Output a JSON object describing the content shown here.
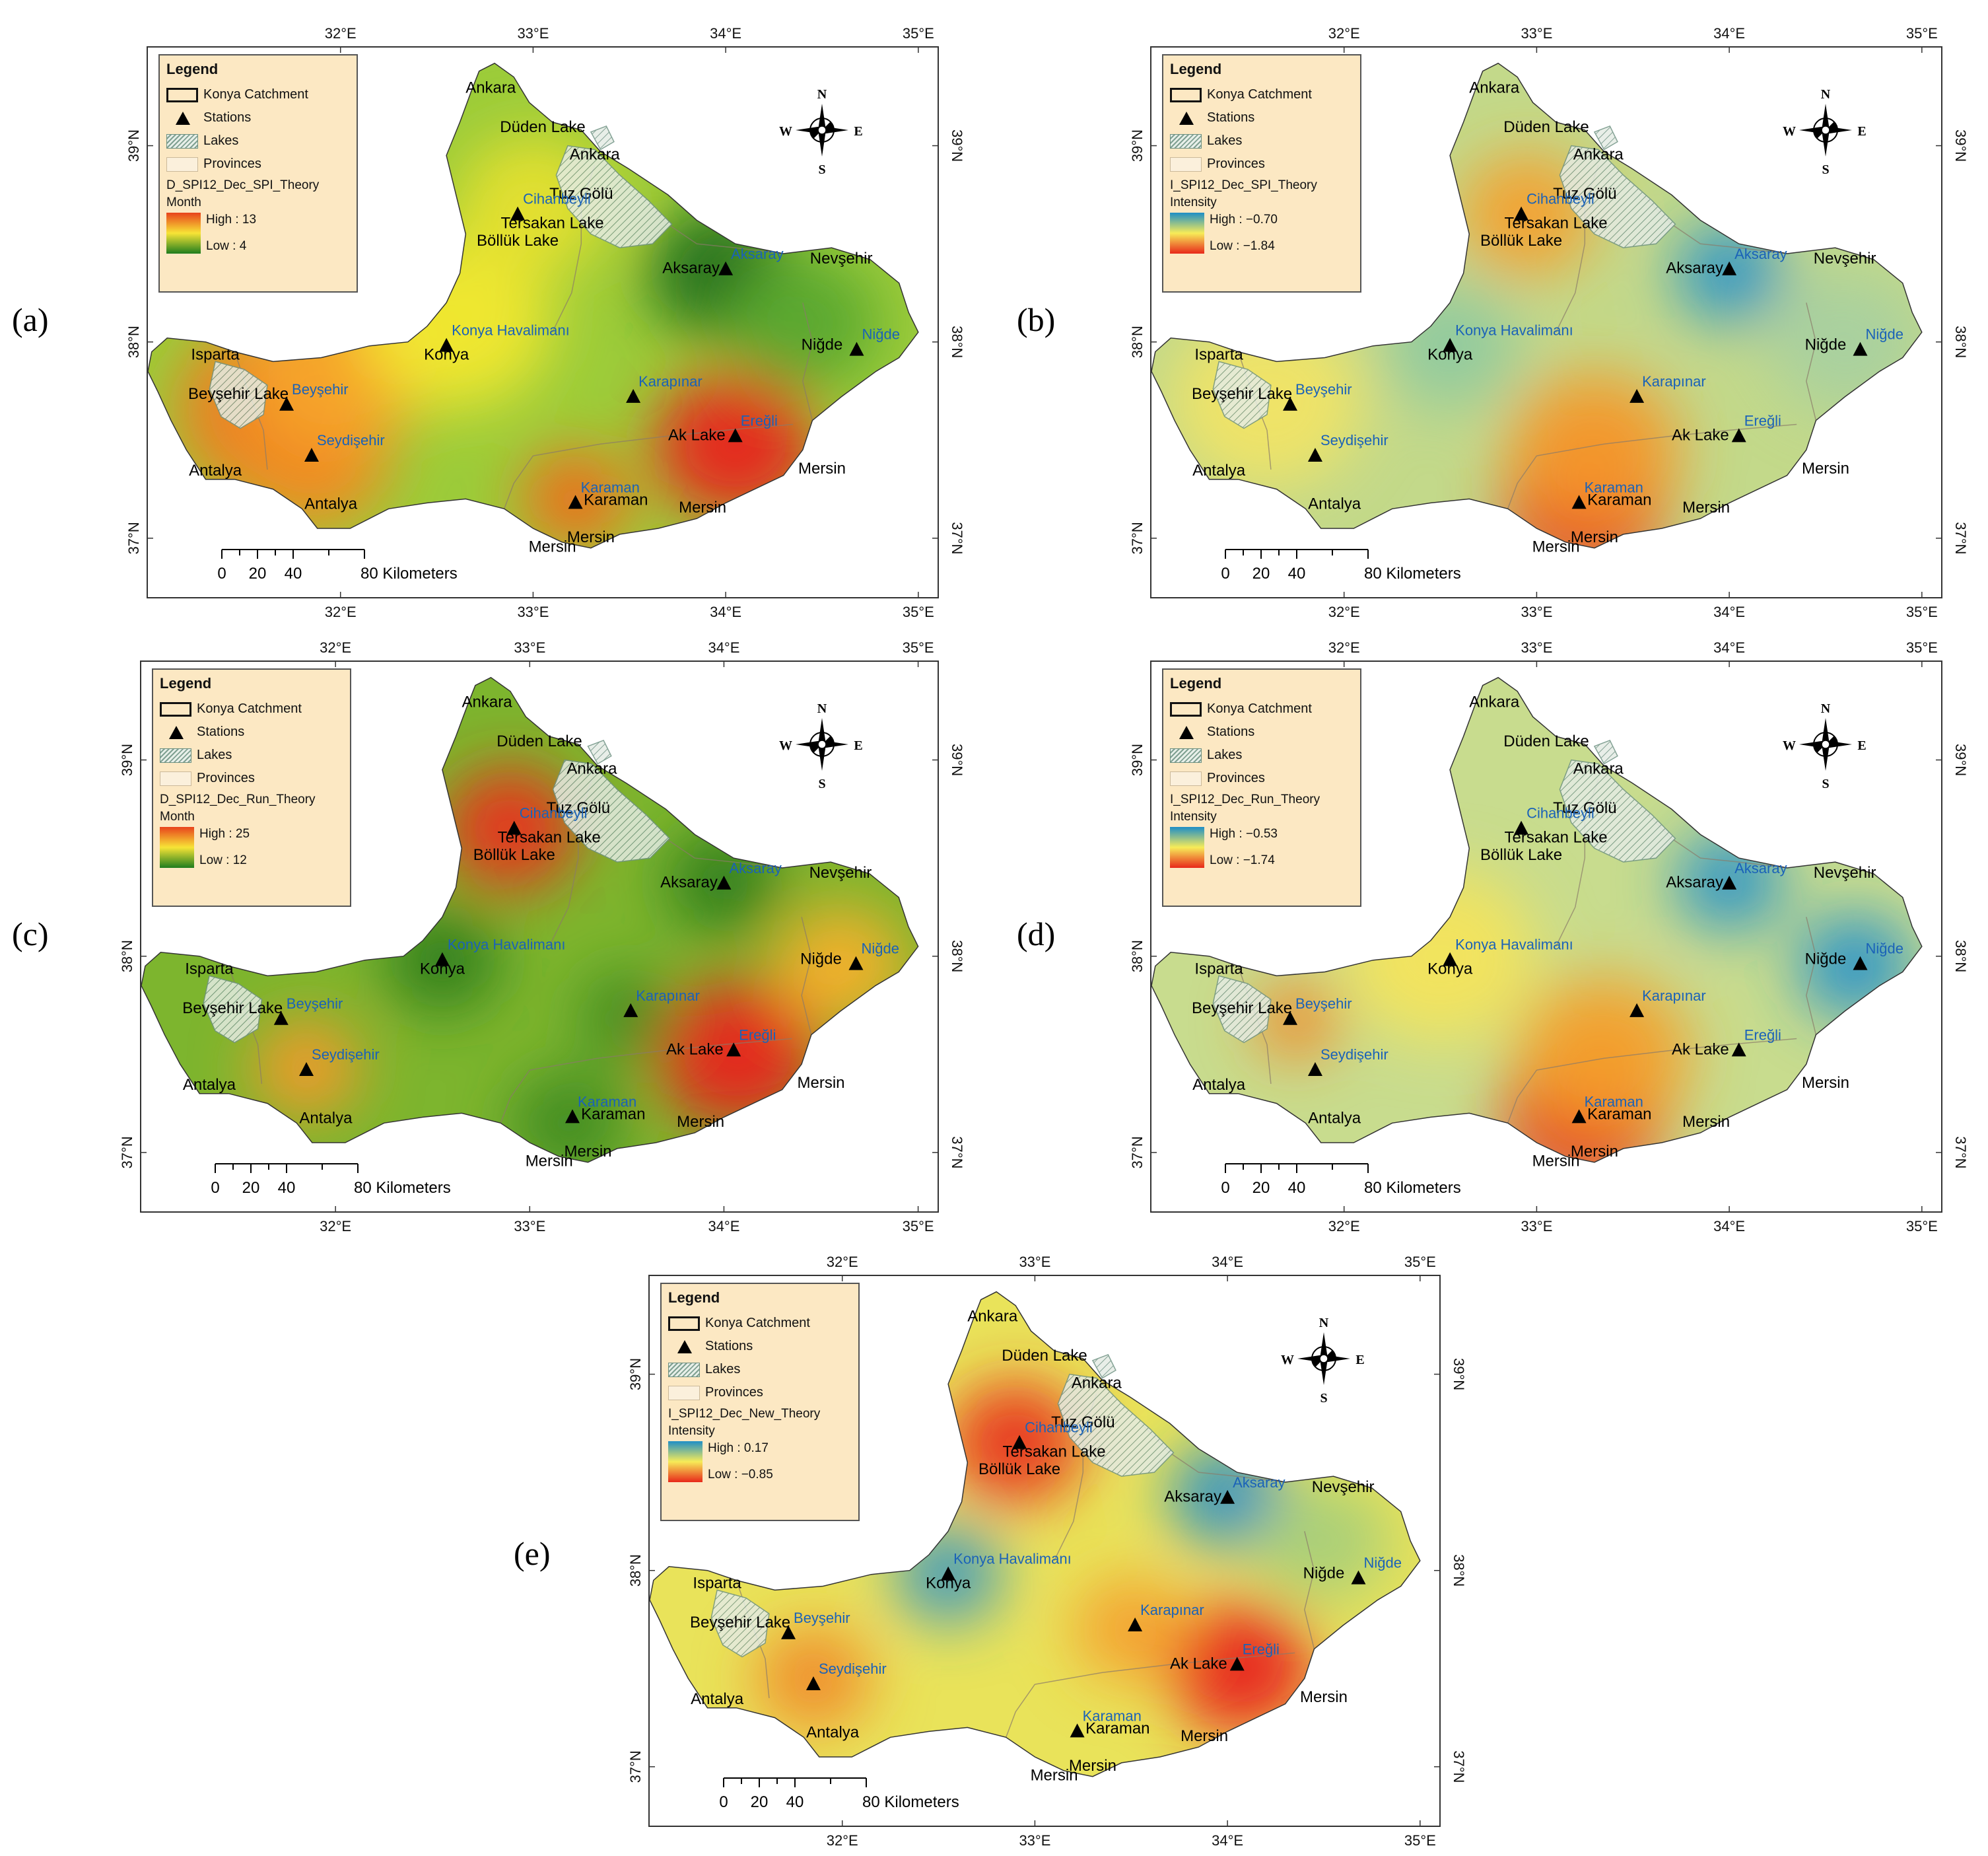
{
  "panels": [
    {
      "id": "a",
      "label": "(a)",
      "legend": {
        "title": "Legend",
        "catchment": "Konya Catchment",
        "stations": "Stations",
        "lakes": "Lakes",
        "provinces": "Provinces",
        "field": "D_SPI12_Dec_SPI_Theory",
        "unit": "Month",
        "high": "High : 13",
        "low": "Low : 4"
      },
      "colors": {
        "background": "#9ccc3a",
        "ramp_top": "#e8431c",
        "ramp_mid": "#f7e436",
        "ramp_bottom": "#1e7d1e"
      },
      "blobs": [
        {
          "lon": 34.05,
          "lat": 37.47,
          "color": "#e8231a",
          "r": 0.42
        },
        {
          "lon": 33.22,
          "lat": 37.2,
          "color": "#f06a1e",
          "r": 0.28
        },
        {
          "lon": 31.7,
          "lat": 37.65,
          "color": "#f07a22",
          "r": 0.55
        },
        {
          "lon": 31.85,
          "lat": 37.4,
          "color": "#f08a24",
          "r": 0.4
        },
        {
          "lon": 32.0,
          "lat": 37.9,
          "color": "#f5a52a",
          "r": 0.5
        },
        {
          "lon": 33.98,
          "lat": 38.35,
          "color": "#1a6b1a",
          "r": 0.38
        },
        {
          "lon": 34.4,
          "lat": 38.1,
          "color": "#5aa830",
          "r": 0.4
        },
        {
          "lon": 32.6,
          "lat": 38.1,
          "color": "#f2e830",
          "r": 0.5
        },
        {
          "lon": 33.0,
          "lat": 38.7,
          "color": "#e6e030",
          "r": 0.4
        }
      ]
    },
    {
      "id": "b",
      "label": "(b)",
      "legend": {
        "title": "Legend",
        "catchment": "Konya Catchment",
        "stations": "Stations",
        "lakes": "Lakes",
        "provinces": "Provinces",
        "field": "I_SPI12_Dec_SPI_Theory",
        "unit": "Intensity",
        "high": "High : −0.70",
        "low": "Low : −1.84"
      },
      "colors": {
        "background": "#c3d98a",
        "ramp_top": "#1f8fc6",
        "ramp_mid": "#f7ec58",
        "ramp_bottom": "#e8281a"
      },
      "blobs": [
        {
          "lon": 33.25,
          "lat": 37.18,
          "color": "#e8231a",
          "r": 0.42
        },
        {
          "lon": 33.3,
          "lat": 37.45,
          "color": "#f39a2a",
          "r": 0.45
        },
        {
          "lon": 32.95,
          "lat": 38.65,
          "color": "#f4a030",
          "r": 0.35
        },
        {
          "lon": 34.0,
          "lat": 38.35,
          "color": "#2a93c8",
          "r": 0.28
        },
        {
          "lon": 32.55,
          "lat": 37.98,
          "color": "#8fc9a0",
          "r": 0.35
        },
        {
          "lon": 31.6,
          "lat": 37.7,
          "color": "#f1e466",
          "r": 0.5
        },
        {
          "lon": 34.6,
          "lat": 38.0,
          "color": "#a8d0a0",
          "r": 0.4
        }
      ]
    },
    {
      "id": "c",
      "label": "(c)",
      "legend": {
        "title": "Legend",
        "catchment": "Konya Catchment",
        "stations": "Stations",
        "lakes": "Lakes",
        "provinces": "Provinces",
        "field": "D_SPI12_Dec_Run_Theory",
        "unit": "Month",
        "high": "High : 25",
        "low": "Low : 12"
      },
      "colors": {
        "background": "#7db52e",
        "ramp_top": "#e8431c",
        "ramp_mid": "#f7e436",
        "ramp_bottom": "#1e7d1e"
      },
      "blobs": [
        {
          "lon": 34.07,
          "lat": 37.5,
          "color": "#e8231a",
          "r": 0.42
        },
        {
          "lon": 32.9,
          "lat": 38.65,
          "color": "#e8341c",
          "r": 0.35
        },
        {
          "lon": 31.85,
          "lat": 37.43,
          "color": "#f39a2a",
          "r": 0.28
        },
        {
          "lon": 34.6,
          "lat": 37.95,
          "color": "#f4b02c",
          "r": 0.35
        },
        {
          "lon": 32.55,
          "lat": 37.98,
          "color": "#2e7d1e",
          "r": 0.3
        },
        {
          "lon": 34.0,
          "lat": 38.38,
          "color": "#2e7d1e",
          "r": 0.3
        },
        {
          "lon": 33.5,
          "lat": 37.7,
          "color": "#3f8a22",
          "r": 0.25
        },
        {
          "lon": 33.2,
          "lat": 37.15,
          "color": "#3f8a22",
          "r": 0.3
        }
      ]
    },
    {
      "id": "d",
      "label": "(d)",
      "legend": {
        "title": "Legend",
        "catchment": "Konya Catchment",
        "stations": "Stations",
        "lakes": "Lakes",
        "provinces": "Provinces",
        "field": "I_SPI12_Dec_Run_Theory",
        "unit": "Intensity",
        "high": "High : −0.53",
        "low": "Low : −1.74"
      },
      "colors": {
        "background": "#c8dc8e",
        "ramp_top": "#1f8fc6",
        "ramp_mid": "#f7ec58",
        "ramp_bottom": "#e8281a"
      },
      "blobs": [
        {
          "lon": 33.25,
          "lat": 37.2,
          "color": "#e8231a",
          "r": 0.42
        },
        {
          "lon": 33.35,
          "lat": 37.5,
          "color": "#f3a02c",
          "r": 0.45
        },
        {
          "lon": 31.75,
          "lat": 37.67,
          "color": "#f08a2a",
          "r": 0.22
        },
        {
          "lon": 34.0,
          "lat": 38.38,
          "color": "#2a93c8",
          "r": 0.28
        },
        {
          "lon": 34.65,
          "lat": 37.95,
          "color": "#2a93c8",
          "r": 0.3
        },
        {
          "lon": 32.5,
          "lat": 38.0,
          "color": "#f3e45c",
          "r": 0.5
        }
      ]
    },
    {
      "id": "e",
      "label": "(e)",
      "legend": {
        "title": "Legend",
        "catchment": "Konya Catchment",
        "stations": "Stations",
        "lakes": "Lakes",
        "provinces": "Provinces",
        "field": "I_SPI12_Dec_New_Theory",
        "unit": "Intensity",
        "high": "High : 0.17",
        "low": "Low : −0.85"
      },
      "colors": {
        "background": "#e9e35a",
        "ramp_top": "#1f8fc6",
        "ramp_mid": "#f7ec58",
        "ramp_bottom": "#e8281a"
      },
      "blobs": [
        {
          "lon": 34.07,
          "lat": 37.5,
          "color": "#e8231a",
          "r": 0.38
        },
        {
          "lon": 32.9,
          "lat": 38.65,
          "color": "#e8341c",
          "r": 0.35
        },
        {
          "lon": 31.85,
          "lat": 37.45,
          "color": "#f08a2a",
          "r": 0.3
        },
        {
          "lon": 33.5,
          "lat": 37.7,
          "color": "#f4a030",
          "r": 0.3
        },
        {
          "lon": 34.0,
          "lat": 38.38,
          "color": "#2a8fc6",
          "r": 0.3
        },
        {
          "lon": 32.55,
          "lat": 37.98,
          "color": "#3f98c0",
          "r": 0.28
        },
        {
          "lon": 34.5,
          "lat": 38.15,
          "color": "#a8cf7a",
          "r": 0.35
        }
      ]
    }
  ],
  "axes": {
    "lon_ticks": [
      "32°E",
      "33°E",
      "34°E",
      "35°E"
    ],
    "lat_ticks": [
      "39°N",
      "38°N",
      "37°N"
    ]
  },
  "compass": {
    "n": "N",
    "s": "S",
    "e": "E",
    "w": "W"
  },
  "scale_bar": {
    "labels": [
      "0",
      "20",
      "40",
      "80 Kilometers"
    ]
  },
  "stations": [
    {
      "name": "Cihanbeyli",
      "lon": 32.92,
      "lat": 38.65
    },
    {
      "name": "Aksaray",
      "lon": 34.0,
      "lat": 38.37
    },
    {
      "name": "Konya Havalimanı",
      "lon": 32.55,
      "lat": 37.98
    },
    {
      "name": "Niğde",
      "lon": 34.68,
      "lat": 37.96
    },
    {
      "name": "Beyşehir",
      "lon": 31.72,
      "lat": 37.68
    },
    {
      "name": "Karapınar",
      "lon": 33.52,
      "lat": 37.72
    },
    {
      "name": "Ereğli",
      "lon": 34.05,
      "lat": 37.52
    },
    {
      "name": "Seydişehir",
      "lon": 31.85,
      "lat": 37.42
    },
    {
      "name": "Karaman",
      "lon": 33.22,
      "lat": 37.18
    }
  ],
  "places": [
    {
      "name": "Ankara",
      "lon": 32.78,
      "lat": 39.27
    },
    {
      "name": "Düden Lake",
      "lon": 33.05,
      "lat": 39.07
    },
    {
      "name": "Ankara",
      "lon": 33.32,
      "lat": 38.93
    },
    {
      "name": "Tuz Gölü",
      "lon": 33.25,
      "lat": 38.73
    },
    {
      "name": "Tersakan Lake",
      "lon": 33.1,
      "lat": 38.58
    },
    {
      "name": "Böllük Lake",
      "lon": 32.92,
      "lat": 38.49
    },
    {
      "name": "Aksaray",
      "lon": 33.82,
      "lat": 38.35
    },
    {
      "name": "Nevşehir",
      "lon": 34.6,
      "lat": 38.4
    },
    {
      "name": "Konya",
      "lon": 32.55,
      "lat": 37.91
    },
    {
      "name": "Niğde",
      "lon": 34.5,
      "lat": 37.96
    },
    {
      "name": "Isparta",
      "lon": 31.35,
      "lat": 37.91
    },
    {
      "name": "Beyşehir Lake",
      "lon": 31.47,
      "lat": 37.71
    },
    {
      "name": "Ak Lake",
      "lon": 33.85,
      "lat": 37.5
    },
    {
      "name": "Antalya",
      "lon": 31.35,
      "lat": 37.32
    },
    {
      "name": "Antalya",
      "lon": 31.95,
      "lat": 37.15
    },
    {
      "name": "Karaman",
      "lon": 33.43,
      "lat": 37.17
    },
    {
      "name": "Mersin",
      "lon": 34.5,
      "lat": 37.33
    },
    {
      "name": "Mersin",
      "lon": 33.88,
      "lat": 37.13
    },
    {
      "name": "Mersin",
      "lon": 33.3,
      "lat": 36.98
    },
    {
      "name": "Mersin",
      "lon": 33.1,
      "lat": 36.93
    }
  ]
}
